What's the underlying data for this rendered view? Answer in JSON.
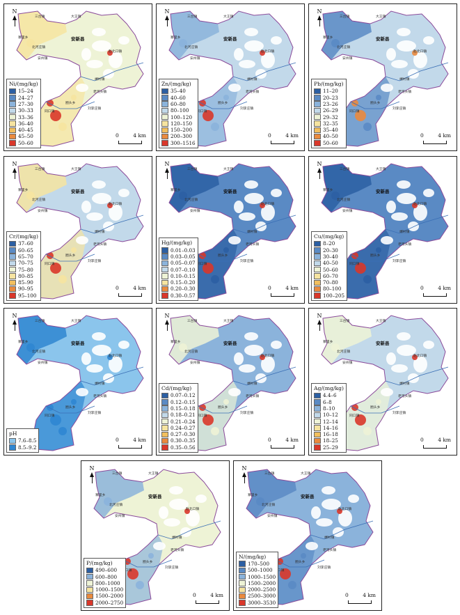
{
  "north_label": "N",
  "scale": {
    "start": "0",
    "end": "4 km"
  },
  "towns": {
    "county": "安新县",
    "t1": "大王镇",
    "t2": "三台镇",
    "t3": "寨里乡",
    "t4": "北河庄镇",
    "t5": "安州镇",
    "t6": "端村镇",
    "t7": "同口镇",
    "t8": "老河头镇",
    "t9": "圈头乡",
    "t10": "刘李庄镇",
    "t11": "赵北口镇"
  },
  "panels": [
    {
      "id": "ni",
      "title": "Ni/(mg/kg)",
      "classes": [
        {
          "label": "15–24",
          "color": "#2c5fa3"
        },
        {
          "label": "24–27",
          "color": "#5a8ac4"
        },
        {
          "label": "27–30",
          "color": "#8bb3db"
        },
        {
          "label": "30–33",
          "color": "#c2d9ea"
        },
        {
          "label": "33–36",
          "color": "#eef3d6"
        },
        {
          "label": "36–40",
          "color": "#f6e4a0"
        },
        {
          "label": "40–45",
          "color": "#f2bf5e"
        },
        {
          "label": "45–50",
          "color": "#ea8a3e"
        },
        {
          "label": "50–60",
          "color": "#d9372a"
        }
      ]
    },
    {
      "id": "zn",
      "title": "Zn/(mg/kg)",
      "classes": [
        {
          "label": "35–40",
          "color": "#2c5fa3"
        },
        {
          "label": "40–60",
          "color": "#5a8ac4"
        },
        {
          "label": "60–80",
          "color": "#8bb3db"
        },
        {
          "label": "80–100",
          "color": "#c2d9ea"
        },
        {
          "label": "100–120",
          "color": "#eef3d6"
        },
        {
          "label": "120–150",
          "color": "#f6e4a0"
        },
        {
          "label": "150–200",
          "color": "#f2bf5e"
        },
        {
          "label": "200–300",
          "color": "#ea8a3e"
        },
        {
          "label": "300–1516",
          "color": "#d9372a"
        }
      ]
    },
    {
      "id": "pb",
      "title": "Pb/(mg/kg)",
      "classes": [
        {
          "label": "11–20",
          "color": "#2c5fa3"
        },
        {
          "label": "20–23",
          "color": "#5a8ac4"
        },
        {
          "label": "23–26",
          "color": "#8bb3db"
        },
        {
          "label": "26–29",
          "color": "#c2d9ea"
        },
        {
          "label": "29–32",
          "color": "#eef3d6"
        },
        {
          "label": "32–35",
          "color": "#f6e4a0"
        },
        {
          "label": "35–40",
          "color": "#f2bf5e"
        },
        {
          "label": "40–50",
          "color": "#ea8a3e"
        },
        {
          "label": "50–60",
          "color": "#d9372a"
        }
      ]
    },
    {
      "id": "cr",
      "title": "Cr/(mg/kg)",
      "classes": [
        {
          "label": "37–60",
          "color": "#2c5fa3"
        },
        {
          "label": "60–65",
          "color": "#5a8ac4"
        },
        {
          "label": "65–70",
          "color": "#8bb3db"
        },
        {
          "label": "70–75",
          "color": "#c2d9ea"
        },
        {
          "label": "75–80",
          "color": "#eef3d6"
        },
        {
          "label": "80–85",
          "color": "#f6e4a0"
        },
        {
          "label": "85–90",
          "color": "#f2bf5e"
        },
        {
          "label": "90–95",
          "color": "#ea8a3e"
        },
        {
          "label": "95–100",
          "color": "#d9372a"
        }
      ]
    },
    {
      "id": "hg",
      "title": "Hg/(mg/kg)",
      "classes": [
        {
          "label": "0.01–0.03",
          "color": "#2c5fa3"
        },
        {
          "label": "0.03–0.05",
          "color": "#5a8ac4"
        },
        {
          "label": "0.05–0.07",
          "color": "#8bb3db"
        },
        {
          "label": "0.07–0.10",
          "color": "#c2d9ea"
        },
        {
          "label": "0.10–0.15",
          "color": "#eef3d6"
        },
        {
          "label": "0.15–0.20",
          "color": "#f6e4a0"
        },
        {
          "label": "0.20–0.30",
          "color": "#ea8a3e"
        },
        {
          "label": "0.30–0.57",
          "color": "#d9372a"
        }
      ]
    },
    {
      "id": "cu",
      "title": "Cu/(mg/kg)",
      "classes": [
        {
          "label": "8–20",
          "color": "#2c5fa3"
        },
        {
          "label": "20–30",
          "color": "#5a8ac4"
        },
        {
          "label": "30–40",
          "color": "#8bb3db"
        },
        {
          "label": "40–50",
          "color": "#c2d9ea"
        },
        {
          "label": "50–60",
          "color": "#eef3d6"
        },
        {
          "label": "60–70",
          "color": "#f6e4a0"
        },
        {
          "label": "70–80",
          "color": "#f2bf5e"
        },
        {
          "label": "80–100",
          "color": "#ea8a3e"
        },
        {
          "label": "100–205",
          "color": "#d9372a"
        }
      ]
    },
    {
      "id": "ph",
      "title": "pH",
      "classes": [
        {
          "label": "7.6–8.5",
          "color": "#8bc5ec"
        },
        {
          "label": "8.5–9.2",
          "color": "#2f86d1"
        }
      ]
    },
    {
      "id": "cd",
      "title": "Cd/(mg/kg)",
      "classes": [
        {
          "label": "0.07–0.12",
          "color": "#2c5fa3"
        },
        {
          "label": "0.12–0.15",
          "color": "#5a8ac4"
        },
        {
          "label": "0.15–0.18",
          "color": "#8bb3db"
        },
        {
          "label": "0.18–0.21",
          "color": "#c2d9ea"
        },
        {
          "label": "0.21–0.24",
          "color": "#eef3d6"
        },
        {
          "label": "0.24–0.27",
          "color": "#f6e4a0"
        },
        {
          "label": "0.27–0.30",
          "color": "#f2bf5e"
        },
        {
          "label": "0.30–0.35",
          "color": "#ea8a3e"
        },
        {
          "label": "0.35–0.56",
          "color": "#d9372a"
        }
      ]
    },
    {
      "id": "ag",
      "title": "Ag/(mg/kg)",
      "classes": [
        {
          "label": "4.4–6",
          "color": "#2c5fa3"
        },
        {
          "label": "6–8",
          "color": "#5a8ac4"
        },
        {
          "label": "8–10",
          "color": "#8bb3db"
        },
        {
          "label": "10–12",
          "color": "#c2d9ea"
        },
        {
          "label": "12–14",
          "color": "#eef3d6"
        },
        {
          "label": "14–16",
          "color": "#f6e4a0"
        },
        {
          "label": "16–18",
          "color": "#f2bf5e"
        },
        {
          "label": "18–25",
          "color": "#ea8a3e"
        },
        {
          "label": "25–29",
          "color": "#d9372a"
        }
      ]
    },
    {
      "id": "p",
      "title": "P/(mg/kg)",
      "classes": [
        {
          "label": "490–600",
          "color": "#2c5fa3"
        },
        {
          "label": "600–800",
          "color": "#8bb3db"
        },
        {
          "label": "800–1000",
          "color": "#eef3d6"
        },
        {
          "label": "1000–1500",
          "color": "#f6e4a0"
        },
        {
          "label": "1500–2000",
          "color": "#ea8a3e"
        },
        {
          "label": "2000–2750",
          "color": "#d9372a"
        }
      ]
    },
    {
      "id": "n",
      "title": "N/(mg/kg)",
      "classes": [
        {
          "label": "170–500",
          "color": "#2c5fa3"
        },
        {
          "label": "500–1000",
          "color": "#5a8ac4"
        },
        {
          "label": "1000–1500",
          "color": "#8bb3db"
        },
        {
          "label": "1500–2000",
          "color": "#eef3d6"
        },
        {
          "label": "2000–2500",
          "color": "#f6e4a0"
        },
        {
          "label": "2500–3000",
          "color": "#ea8a3e"
        },
        {
          "label": "3000–3530",
          "color": "#d9372a"
        }
      ]
    }
  ]
}
